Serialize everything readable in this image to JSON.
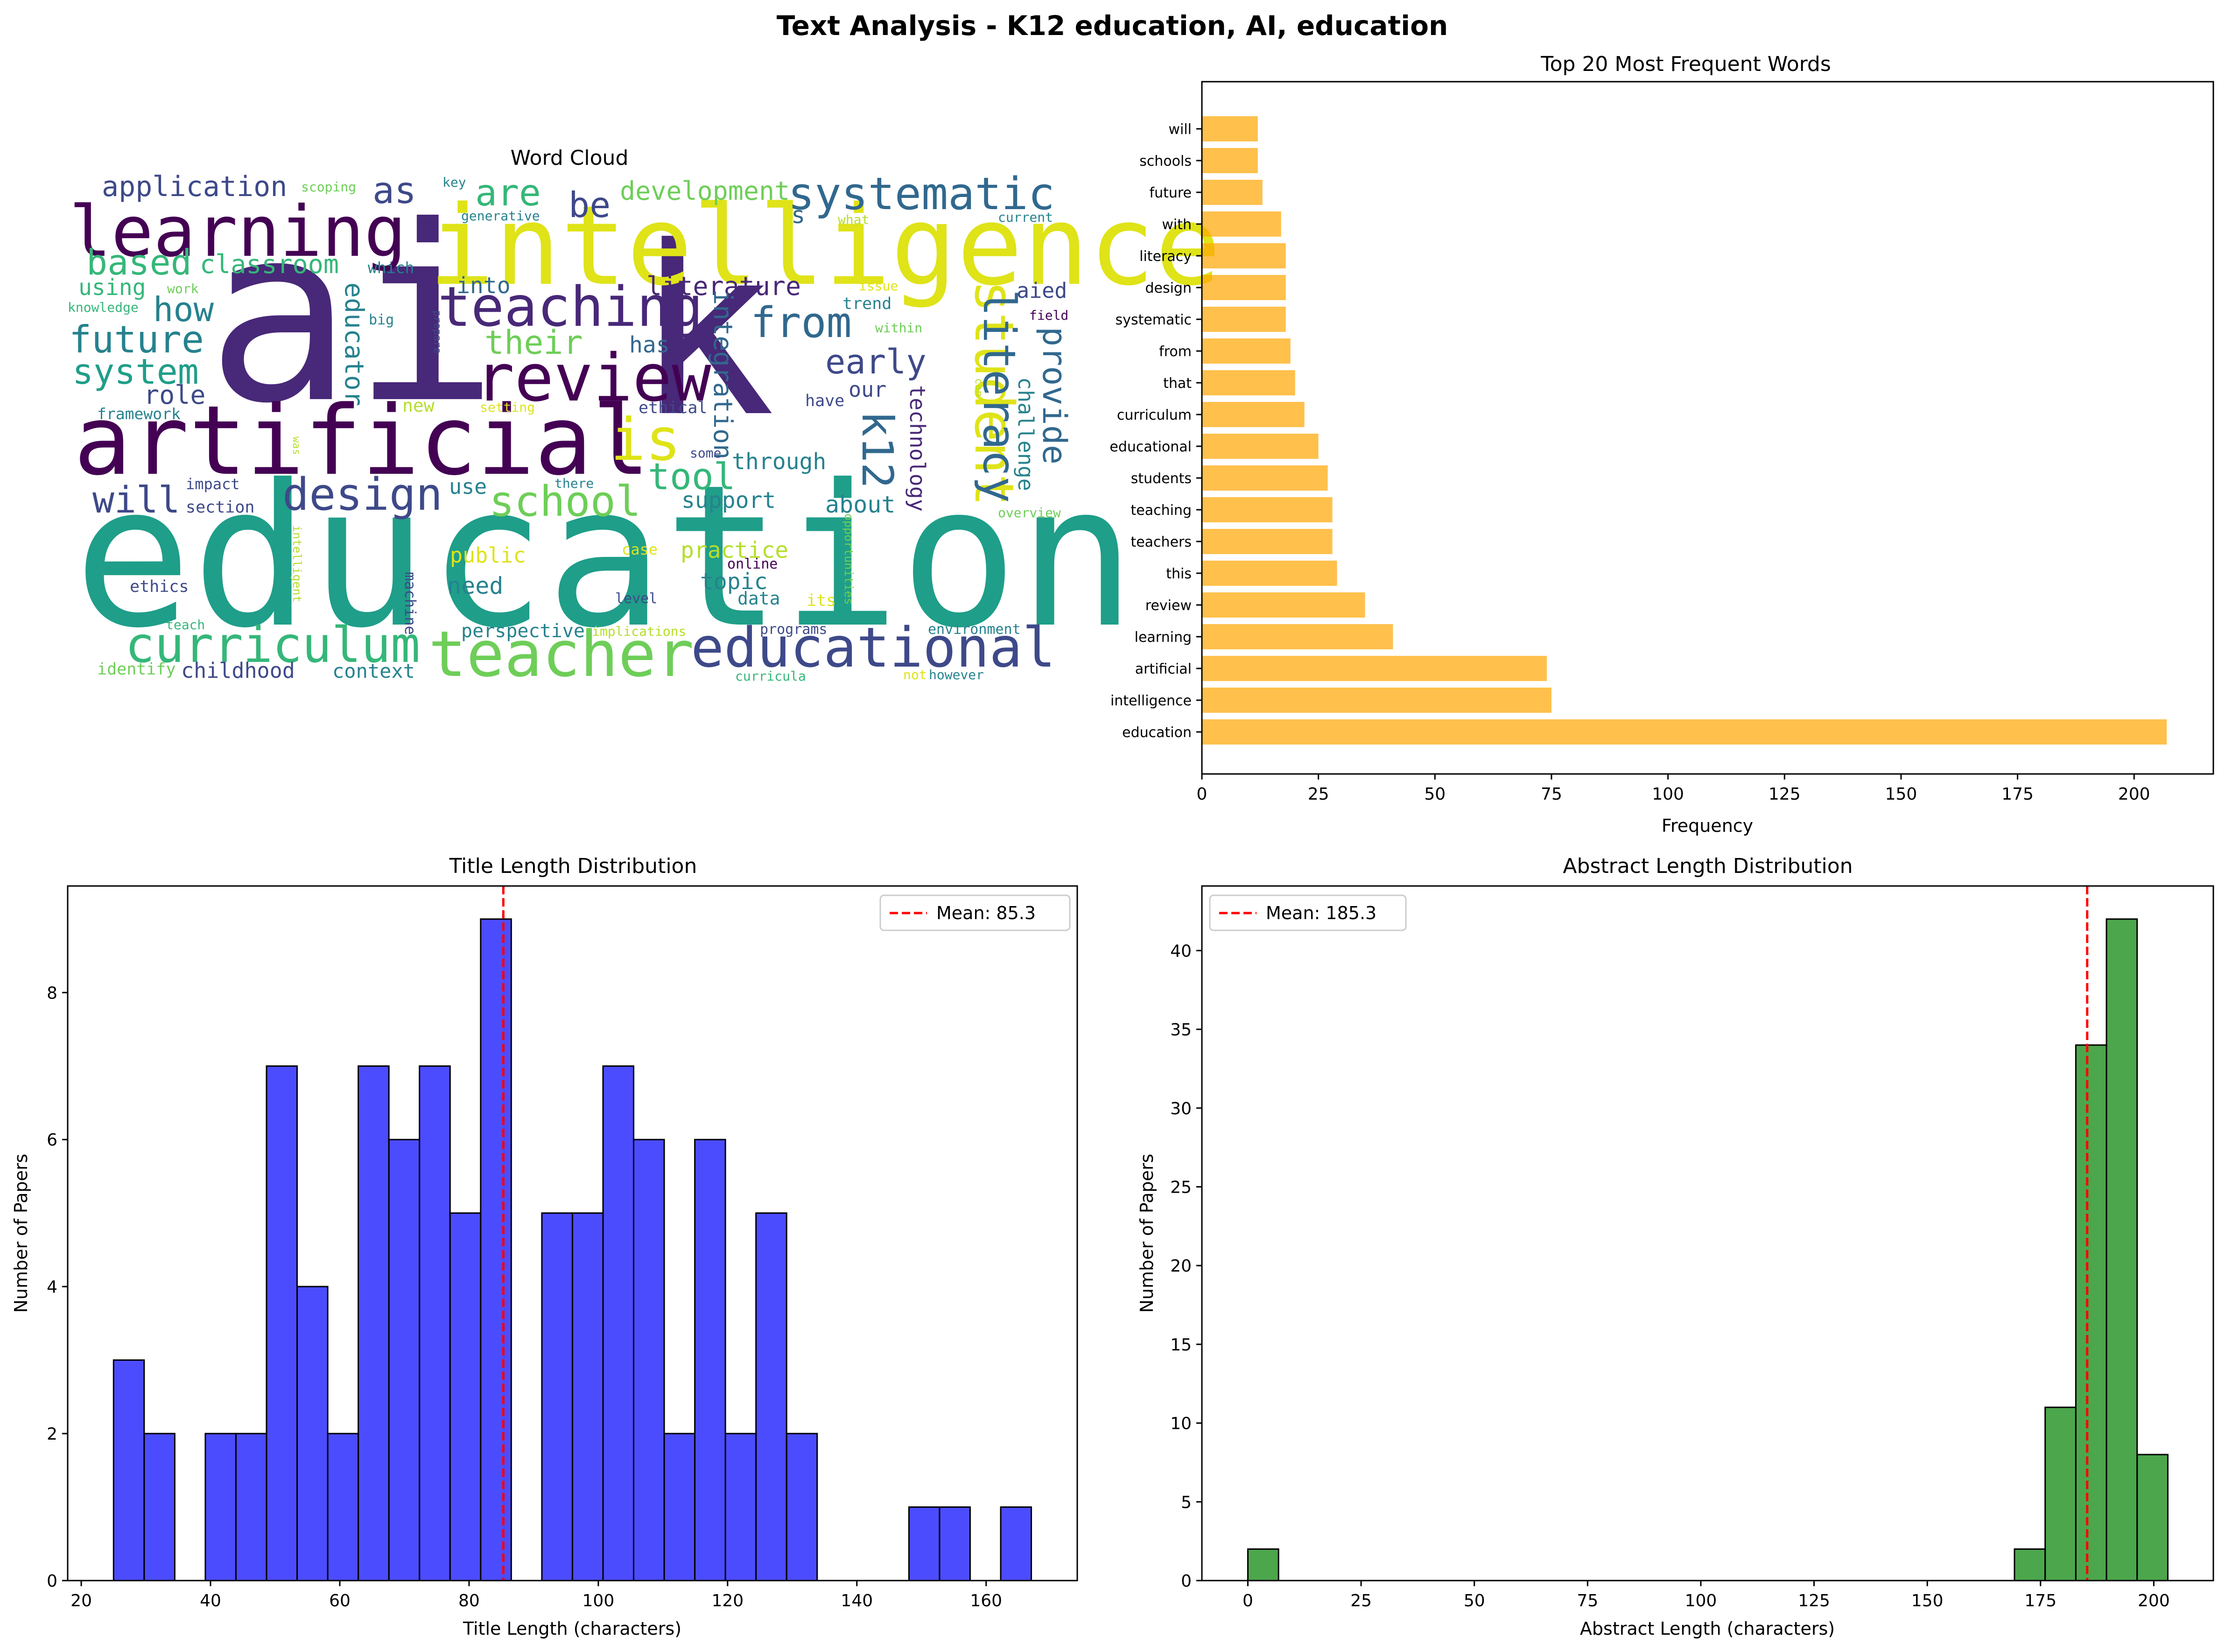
{
  "figure": {
    "title": "Text Analysis - K12 education, AI, education"
  },
  "chart_data": [
    {
      "type": "wordcloud",
      "title": "Word Cloud",
      "colors": [
        "#440154",
        "#482878",
        "#3e4989",
        "#31688e",
        "#26828e",
        "#1f9e89",
        "#35b779",
        "#6ece58",
        "#b5de2b",
        "#fde725"
      ],
      "words": [
        {
          "text": "ai",
          "color": "#482878"
        },
        {
          "text": "k",
          "color": "#482878"
        },
        {
          "text": "education",
          "color": "#1f9e89"
        },
        {
          "text": "intelligence",
          "color": "#dfe318"
        },
        {
          "text": "artificial",
          "color": "#440154"
        },
        {
          "text": "learning",
          "color": "#440154"
        },
        {
          "text": "review",
          "color": "#440154"
        },
        {
          "text": "teacher",
          "color": "#6ece58"
        },
        {
          "text": "educational",
          "color": "#3e4989"
        },
        {
          "text": "curriculum",
          "color": "#35b779"
        },
        {
          "text": "teaching",
          "color": "#482878"
        },
        {
          "text": "systematic",
          "color": "#31688e"
        },
        {
          "text": "student",
          "color": "#dfe318"
        },
        {
          "text": "is",
          "color": "#dfe318"
        },
        {
          "text": "design",
          "color": "#3e4989"
        },
        {
          "text": "school",
          "color": "#6ece58"
        },
        {
          "text": "literacy",
          "color": "#31688e"
        },
        {
          "text": "from",
          "color": "#31688e"
        },
        {
          "text": "k12",
          "color": "#31688e"
        },
        {
          "text": "provide",
          "color": "#31688e"
        },
        {
          "text": "future",
          "color": "#26828e"
        },
        {
          "text": "system",
          "color": "#1f9e89"
        },
        {
          "text": "based",
          "color": "#35b779"
        },
        {
          "text": "how",
          "color": "#26828e"
        },
        {
          "text": "will",
          "color": "#3e4989"
        },
        {
          "text": "are",
          "color": "#35b779"
        },
        {
          "text": "as",
          "color": "#3e4989"
        },
        {
          "text": "be",
          "color": "#3e4989"
        },
        {
          "text": "tool",
          "color": "#35b779"
        },
        {
          "text": "early",
          "color": "#3e4989"
        },
        {
          "text": "their",
          "color": "#6ece58"
        },
        {
          "text": "application",
          "color": "#3e4989"
        },
        {
          "text": "development",
          "color": "#6ece58"
        },
        {
          "text": "classroom",
          "color": "#35b779"
        },
        {
          "text": "literature",
          "color": "#482878"
        },
        {
          "text": "educator",
          "color": "#26828e"
        },
        {
          "text": "integration",
          "color": "#31688e"
        },
        {
          "text": "technology",
          "color": "#482878"
        },
        {
          "text": "challenge",
          "color": "#26828e"
        },
        {
          "text": "role",
          "color": "#3e4989"
        },
        {
          "text": "using",
          "color": "#35b779"
        },
        {
          "text": "into",
          "color": "#31688e"
        },
        {
          "text": "has",
          "color": "#31688e"
        },
        {
          "text": "our",
          "color": "#3e4989"
        },
        {
          "text": "aied",
          "color": "#3e4989"
        },
        {
          "text": "through",
          "color": "#26828e"
        },
        {
          "text": "support",
          "color": "#26828e"
        },
        {
          "text": "about",
          "color": "#26828e"
        },
        {
          "text": "practice",
          "color": "#b5de2b"
        },
        {
          "text": "topic",
          "color": "#26828e"
        },
        {
          "text": "need",
          "color": "#26828e"
        },
        {
          "text": "public",
          "color": "#dfe318"
        },
        {
          "text": "context",
          "color": "#26828e"
        },
        {
          "text": "childhood",
          "color": "#3e4989"
        },
        {
          "text": "perspective",
          "color": "#26828e"
        },
        {
          "text": "use",
          "color": "#26828e"
        },
        {
          "text": "data",
          "color": "#26828e"
        },
        {
          "text": "s",
          "color": "#31688e"
        },
        {
          "text": "trend",
          "color": "#26828e"
        },
        {
          "text": "framework",
          "color": "#26828e"
        },
        {
          "text": "impact",
          "color": "#3e4989"
        },
        {
          "text": "section",
          "color": "#3e4989"
        },
        {
          "text": "ethics",
          "color": "#3e4989"
        },
        {
          "text": "ethical",
          "color": "#3e4989"
        },
        {
          "text": "have",
          "color": "#3e4989"
        },
        {
          "text": "new",
          "color": "#b5de2b"
        },
        {
          "text": "setting",
          "color": "#dfe318"
        },
        {
          "text": "machine",
          "color": "#3e4989"
        },
        {
          "text": "online",
          "color": "#440154"
        },
        {
          "text": "case",
          "color": "#dfe318"
        },
        {
          "text": "its",
          "color": "#dfe318"
        },
        {
          "text": "level",
          "color": "#3e4989"
        },
        {
          "text": "programs",
          "color": "#3e4989"
        },
        {
          "text": "environment",
          "color": "#26828e"
        },
        {
          "text": "overview",
          "color": "#6ece58"
        },
        {
          "text": "implications",
          "color": "#b5de2b"
        },
        {
          "text": "curricula",
          "color": "#35b779"
        },
        {
          "text": "however",
          "color": "#26828e"
        },
        {
          "text": "not",
          "color": "#dfe318"
        },
        {
          "text": "identify",
          "color": "#6ece58"
        },
        {
          "text": "teach",
          "color": "#35b779"
        },
        {
          "text": "intelligent",
          "color": "#b5de2b"
        },
        {
          "text": "opportunities",
          "color": "#6ece58"
        },
        {
          "text": "there",
          "color": "#26828e"
        },
        {
          "text": "some",
          "color": "#3e4989"
        },
        {
          "text": "was",
          "color": "#b5de2b"
        },
        {
          "text": "prepare",
          "color": "#3e4989"
        },
        {
          "text": "big",
          "color": "#26828e"
        },
        {
          "text": "which",
          "color": "#26828e"
        },
        {
          "text": "work",
          "color": "#6ece58"
        },
        {
          "text": "knowledge",
          "color": "#35b779"
        },
        {
          "text": "scoping",
          "color": "#6ece58"
        },
        {
          "text": "key",
          "color": "#26828e"
        },
        {
          "text": "generative",
          "color": "#26828e"
        },
        {
          "text": "what",
          "color": "#b5de2b"
        },
        {
          "text": "current",
          "color": "#26828e"
        },
        {
          "text": "issue",
          "color": "#dfe318"
        },
        {
          "text": "within",
          "color": "#6ece58"
        },
        {
          "text": "field",
          "color": "#440154"
        },
        {
          "text": "can",
          "color": "#b5de2b"
        }
      ]
    },
    {
      "type": "bar",
      "orientation": "horizontal",
      "title": "Top 20 Most Frequent Words",
      "xlabel": "Frequency",
      "ylabel": "",
      "xlim": [
        0,
        217
      ],
      "xticks": [
        0,
        25,
        50,
        75,
        100,
        125,
        150,
        175,
        200
      ],
      "color": "#ffa500",
      "categories": [
        "education",
        "intelligence",
        "artificial",
        "learning",
        "review",
        "this",
        "teachers",
        "teaching",
        "students",
        "educational",
        "curriculum",
        "that",
        "from",
        "systematic",
        "design",
        "literacy",
        "with",
        "future",
        "schools",
        "will"
      ],
      "values": [
        207,
        75,
        74,
        41,
        35,
        29,
        28,
        28,
        27,
        25,
        22,
        20,
        19,
        18,
        18,
        18,
        17,
        13,
        12,
        12
      ]
    },
    {
      "type": "histogram",
      "title": "Title Length Distribution",
      "xlabel": "Title Length (characters)",
      "ylabel": "Number of Papers",
      "xlim": [
        17.9,
        174.1
      ],
      "ylim": [
        0,
        9.45
      ],
      "xticks": [
        20,
        40,
        60,
        80,
        100,
        120,
        140,
        160
      ],
      "yticks": [
        0,
        2,
        4,
        6,
        8
      ],
      "color": "#0000ff",
      "bin_start": 25,
      "bin_width": 4.733,
      "counts": [
        3,
        2,
        0,
        2,
        2,
        7,
        4,
        2,
        7,
        6,
        7,
        5,
        9,
        0,
        5,
        5,
        7,
        6,
        2,
        6,
        2,
        5,
        2,
        0,
        0,
        0,
        1,
        1,
        0,
        1
      ],
      "mean": 85.3,
      "mean_label": "Mean: 85.3",
      "legend": "top-right"
    },
    {
      "type": "histogram",
      "title": "Abstract Length Distribution",
      "xlabel": "Abstract Length (characters)",
      "ylabel": "Number of Papers",
      "xlim": [
        -10.15,
        213.15
      ],
      "ylim": [
        0,
        44.1
      ],
      "xticks": [
        0,
        25,
        50,
        75,
        100,
        125,
        150,
        175,
        200
      ],
      "yticks": [
        0,
        5,
        10,
        15,
        20,
        25,
        30,
        35,
        40
      ],
      "color": "#008000",
      "bin_start": 0,
      "bin_width": 6.77,
      "counts": [
        2,
        0,
        0,
        0,
        0,
        0,
        0,
        0,
        0,
        0,
        0,
        0,
        0,
        0,
        0,
        0,
        0,
        0,
        0,
        0,
        0,
        0,
        0,
        0,
        0,
        2,
        11,
        34,
        42,
        8
      ],
      "mean": 185.3,
      "mean_label": "Mean: 185.3",
      "legend": "top-left"
    }
  ]
}
